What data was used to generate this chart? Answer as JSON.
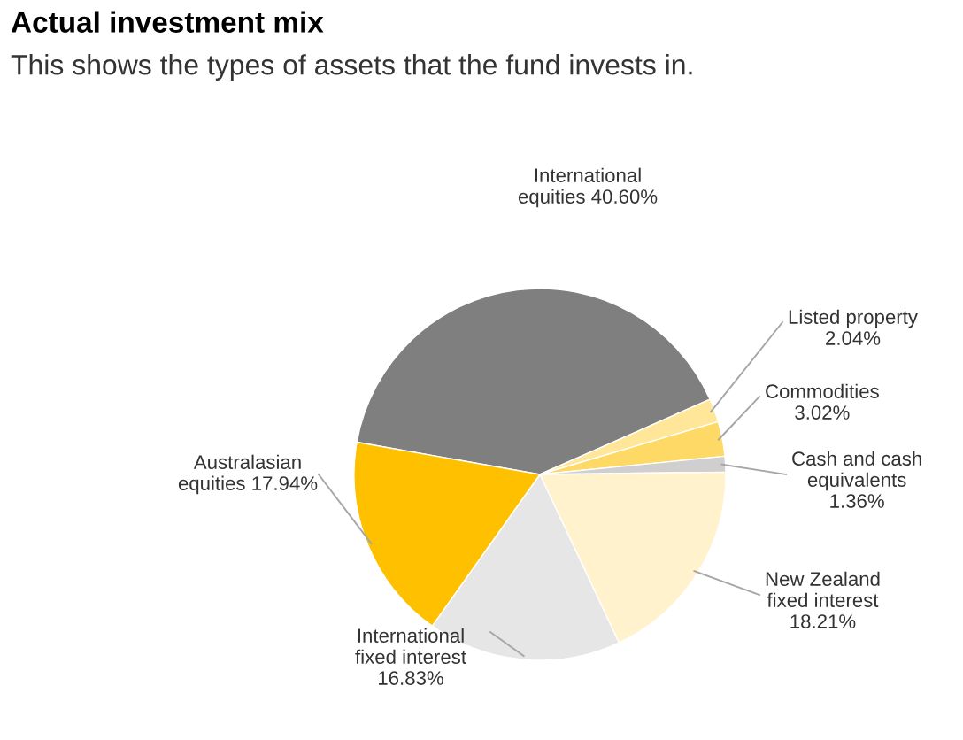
{
  "chart_data": {
    "type": "pie",
    "title": "Actual investment mix",
    "subtitle": "This shows the types of assets that the fund invests in.",
    "categories": [
      "International\nequities",
      "Listed property",
      "Commodities",
      "Cash and cash\nequivalents",
      "New Zealand\nfixed interest",
      "International\nfixed interest",
      "Australasian\nequities"
    ],
    "values": [
      40.6,
      2.04,
      3.02,
      1.36,
      18.21,
      16.83,
      17.94
    ],
    "value_labels": [
      "40.60%",
      "2.04%",
      "3.02%",
      "1.36%",
      "18.21%",
      "16.83%",
      "17.94%"
    ],
    "colors": [
      "#7f7f7f",
      "#ffe699",
      "#ffd966",
      "#d0cece",
      "#fff2cc",
      "#e7e6e6",
      "#ffc000"
    ]
  }
}
